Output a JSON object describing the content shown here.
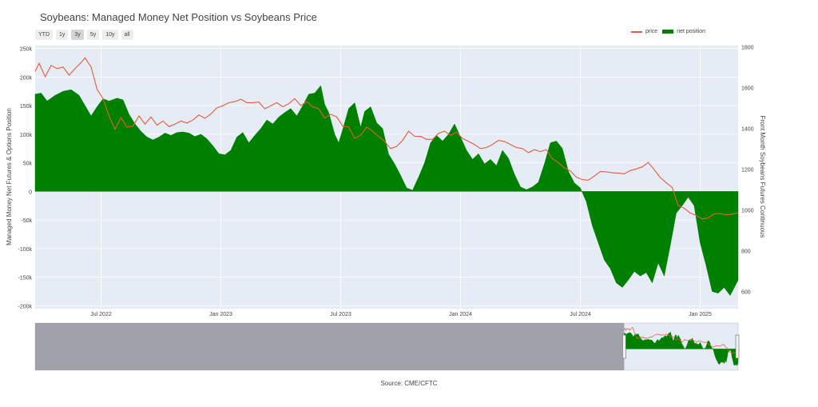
{
  "title": "Soybeans: Managed Money Net Position vs Soybeans Price",
  "source": "Source: CME/CFTC",
  "range_buttons": [
    {
      "label": "YTD",
      "active": false
    },
    {
      "label": "1y",
      "active": false
    },
    {
      "label": "3y",
      "active": true
    },
    {
      "label": "5y",
      "active": false
    },
    {
      "label": "10y",
      "active": false
    },
    {
      "label": "all",
      "active": false
    }
  ],
  "legend": {
    "price": "price",
    "net_position": "net position"
  },
  "colors": {
    "price": "#e45c3a",
    "net_position": "#008000",
    "plot_bg": "#e5ecf6",
    "grid": "#ffffff",
    "rangeslider_mask": "#8a8a8f"
  },
  "chart_data": {
    "type": "area",
    "title": "Soybeans: Managed Money Net Position vs Soybeans Price",
    "ylabel_left": "Managed Money Net Futures & Options Position",
    "ylabel_right": "Front Month Soybeans Futures Continuous",
    "x_ticks": [
      "Jul 2022",
      "Jan 2023",
      "Jul 2023",
      "Jan 2024",
      "Jul 2024",
      "Jan 2025"
    ],
    "x_tick_months": [
      6,
      12,
      18,
      24,
      30,
      36
    ],
    "x_range_months": [
      2.7,
      37.9
    ],
    "ylim_left": [
      -205000,
      255000
    ],
    "yticks_left": [
      -200000,
      -150000,
      -100000,
      -50000,
      0,
      50000,
      100000,
      150000,
      200000,
      250000
    ],
    "ytick_labels_left": [
      "-200k",
      "-150k",
      "-100k",
      "-50k",
      "0",
      "50k",
      "100k",
      "150k",
      "200k",
      "250k"
    ],
    "ylim_right": [
      515,
      1805
    ],
    "yticks_right": [
      600,
      800,
      1000,
      1200,
      1400,
      1600,
      1800
    ],
    "series": [
      {
        "name": "net position",
        "axis": "left",
        "points": [
          [
            2.7,
            170000
          ],
          [
            3.0,
            172000
          ],
          [
            3.3,
            158000
          ],
          [
            3.7,
            168000
          ],
          [
            4.1,
            175000
          ],
          [
            4.5,
            178000
          ],
          [
            4.9,
            168000
          ],
          [
            5.2,
            150000
          ],
          [
            5.5,
            132000
          ],
          [
            5.8,
            148000
          ],
          [
            6.1,
            162000
          ],
          [
            6.4,
            158000
          ],
          [
            6.8,
            163000
          ],
          [
            7.1,
            160000
          ],
          [
            7.4,
            135000
          ],
          [
            7.7,
            118000
          ],
          [
            8.0,
            105000
          ],
          [
            8.3,
            95000
          ],
          [
            8.6,
            90000
          ],
          [
            8.9,
            95000
          ],
          [
            9.2,
            102000
          ],
          [
            9.5,
            98000
          ],
          [
            9.8,
            103000
          ],
          [
            10.1,
            104000
          ],
          [
            10.4,
            102000
          ],
          [
            10.7,
            96000
          ],
          [
            11.0,
            100000
          ],
          [
            11.3,
            92000
          ],
          [
            11.6,
            80000
          ],
          [
            11.9,
            66000
          ],
          [
            12.2,
            64000
          ],
          [
            12.5,
            72000
          ],
          [
            12.8,
            95000
          ],
          [
            13.1,
            103000
          ],
          [
            13.4,
            85000
          ],
          [
            13.7,
            98000
          ],
          [
            14.0,
            110000
          ],
          [
            14.3,
            125000
          ],
          [
            14.6,
            118000
          ],
          [
            14.9,
            130000
          ],
          [
            15.2,
            138000
          ],
          [
            15.5,
            145000
          ],
          [
            15.8,
            132000
          ],
          [
            16.1,
            150000
          ],
          [
            16.4,
            170000
          ],
          [
            16.7,
            172000
          ],
          [
            17.0,
            185000
          ],
          [
            17.2,
            152000
          ],
          [
            17.4,
            138000
          ],
          [
            17.7,
            100000
          ],
          [
            17.9,
            85000
          ],
          [
            18.1,
            108000
          ],
          [
            18.4,
            145000
          ],
          [
            18.7,
            155000
          ],
          [
            19.0,
            112000
          ],
          [
            19.2,
            140000
          ],
          [
            19.5,
            148000
          ],
          [
            19.8,
            120000
          ],
          [
            20.1,
            110000
          ],
          [
            20.4,
            65000
          ],
          [
            20.7,
            48000
          ],
          [
            21.0,
            28000
          ],
          [
            21.3,
            6000
          ],
          [
            21.6,
            2000
          ],
          [
            21.9,
            25000
          ],
          [
            22.2,
            50000
          ],
          [
            22.5,
            85000
          ],
          [
            22.8,
            98000
          ],
          [
            23.1,
            88000
          ],
          [
            23.4,
            100000
          ],
          [
            23.7,
            118000
          ],
          [
            24.0,
            95000
          ],
          [
            24.3,
            72000
          ],
          [
            24.6,
            56000
          ],
          [
            24.9,
            66000
          ],
          [
            25.2,
            48000
          ],
          [
            25.5,
            56000
          ],
          [
            25.8,
            45000
          ],
          [
            26.1,
            72000
          ],
          [
            26.4,
            58000
          ],
          [
            26.7,
            30000
          ],
          [
            27.0,
            8000
          ],
          [
            27.3,
            3000
          ],
          [
            27.6,
            8000
          ],
          [
            27.9,
            16000
          ],
          [
            28.2,
            48000
          ],
          [
            28.5,
            85000
          ],
          [
            28.8,
            88000
          ],
          [
            29.1,
            75000
          ],
          [
            29.4,
            35000
          ],
          [
            29.7,
            15000
          ],
          [
            30.0,
            6000
          ],
          [
            30.3,
            -18000
          ],
          [
            30.6,
            -60000
          ],
          [
            30.9,
            -90000
          ],
          [
            31.2,
            -120000
          ],
          [
            31.5,
            -135000
          ],
          [
            31.8,
            -160000
          ],
          [
            32.1,
            -168000
          ],
          [
            32.4,
            -155000
          ],
          [
            32.7,
            -140000
          ],
          [
            33.0,
            -148000
          ],
          [
            33.3,
            -142000
          ],
          [
            33.6,
            -160000
          ],
          [
            33.9,
            -125000
          ],
          [
            34.2,
            -148000
          ],
          [
            34.5,
            -95000
          ],
          [
            34.8,
            -38000
          ],
          [
            35.1,
            -25000
          ],
          [
            35.4,
            -10000
          ],
          [
            35.7,
            -25000
          ],
          [
            36.0,
            -90000
          ],
          [
            36.3,
            -130000
          ],
          [
            36.6,
            -175000
          ],
          [
            36.9,
            -178000
          ],
          [
            37.2,
            -168000
          ],
          [
            37.5,
            -182000
          ],
          [
            37.9,
            -155000
          ]
        ]
      },
      {
        "name": "price",
        "axis": "right",
        "points": [
          [
            2.7,
            1678
          ],
          [
            2.9,
            1718
          ],
          [
            3.2,
            1652
          ],
          [
            3.5,
            1708
          ],
          [
            3.8,
            1692
          ],
          [
            4.1,
            1700
          ],
          [
            4.4,
            1660
          ],
          [
            4.7,
            1692
          ],
          [
            5.0,
            1722
          ],
          [
            5.2,
            1745
          ],
          [
            5.5,
            1700
          ],
          [
            5.8,
            1590
          ],
          [
            6.1,
            1545
          ],
          [
            6.4,
            1460
          ],
          [
            6.7,
            1395
          ],
          [
            7.0,
            1452
          ],
          [
            7.3,
            1405
          ],
          [
            7.6,
            1410
          ],
          [
            7.9,
            1460
          ],
          [
            8.2,
            1420
          ],
          [
            8.5,
            1455
          ],
          [
            8.8,
            1415
          ],
          [
            9.1,
            1435
          ],
          [
            9.4,
            1408
          ],
          [
            9.7,
            1420
          ],
          [
            10.0,
            1435
          ],
          [
            10.3,
            1425
          ],
          [
            10.6,
            1440
          ],
          [
            10.9,
            1465
          ],
          [
            11.2,
            1448
          ],
          [
            11.5,
            1470
          ],
          [
            11.8,
            1500
          ],
          [
            12.1,
            1510
          ],
          [
            12.4,
            1525
          ],
          [
            12.7,
            1530
          ],
          [
            13.0,
            1542
          ],
          [
            13.3,
            1525
          ],
          [
            13.6,
            1525
          ],
          [
            13.9,
            1528
          ],
          [
            14.2,
            1495
          ],
          [
            14.5,
            1510
          ],
          [
            14.8,
            1525
          ],
          [
            15.1,
            1505
          ],
          [
            15.4,
            1520
          ],
          [
            15.7,
            1545
          ],
          [
            16.0,
            1510
          ],
          [
            16.3,
            1530
          ],
          [
            16.6,
            1505
          ],
          [
            16.9,
            1495
          ],
          [
            17.2,
            1450
          ],
          [
            17.5,
            1468
          ],
          [
            17.8,
            1455
          ],
          [
            18.1,
            1410
          ],
          [
            18.4,
            1405
          ],
          [
            18.7,
            1350
          ],
          [
            19.0,
            1365
          ],
          [
            19.3,
            1405
          ],
          [
            19.6,
            1385
          ],
          [
            19.9,
            1360
          ],
          [
            20.2,
            1335
          ],
          [
            20.5,
            1300
          ],
          [
            20.8,
            1310
          ],
          [
            21.1,
            1340
          ],
          [
            21.4,
            1385
          ],
          [
            21.7,
            1360
          ],
          [
            22.0,
            1360
          ],
          [
            22.3,
            1345
          ],
          [
            22.6,
            1345
          ],
          [
            22.9,
            1375
          ],
          [
            23.2,
            1385
          ],
          [
            23.5,
            1365
          ],
          [
            23.8,
            1380
          ],
          [
            24.1,
            1350
          ],
          [
            24.4,
            1335
          ],
          [
            24.7,
            1320
          ],
          [
            25.0,
            1300
          ],
          [
            25.3,
            1305
          ],
          [
            25.6,
            1320
          ],
          [
            25.9,
            1340
          ],
          [
            26.2,
            1335
          ],
          [
            26.5,
            1320
          ],
          [
            26.8,
            1305
          ],
          [
            27.1,
            1300
          ],
          [
            27.4,
            1280
          ],
          [
            27.7,
            1295
          ],
          [
            28.0,
            1285
          ],
          [
            28.3,
            1295
          ],
          [
            28.6,
            1250
          ],
          [
            28.9,
            1230
          ],
          [
            29.2,
            1205
          ],
          [
            29.5,
            1190
          ],
          [
            29.8,
            1160
          ],
          [
            30.1,
            1148
          ],
          [
            30.4,
            1145
          ],
          [
            30.7,
            1165
          ],
          [
            31.0,
            1188
          ],
          [
            31.3,
            1186
          ],
          [
            31.6,
            1181
          ],
          [
            31.9,
            1180
          ],
          [
            32.2,
            1176
          ],
          [
            32.5,
            1192
          ],
          [
            32.8,
            1200
          ],
          [
            33.1,
            1210
          ],
          [
            33.4,
            1232
          ],
          [
            33.7,
            1196
          ],
          [
            34.0,
            1158
          ],
          [
            34.3,
            1132
          ],
          [
            34.6,
            1110
          ],
          [
            34.9,
            1020
          ],
          [
            35.2,
            1008
          ],
          [
            35.5,
            984
          ],
          [
            35.8,
            972
          ],
          [
            36.1,
            955
          ],
          [
            36.4,
            960
          ],
          [
            36.7,
            980
          ],
          [
            37.0,
            982
          ],
          [
            37.3,
            975
          ],
          [
            37.6,
            978
          ],
          [
            37.9,
            985
          ]
        ]
      }
    ],
    "rangeslider": {
      "visible": true,
      "selection_start_fraction": 0.838,
      "selection_end_fraction": 1.0
    }
  }
}
